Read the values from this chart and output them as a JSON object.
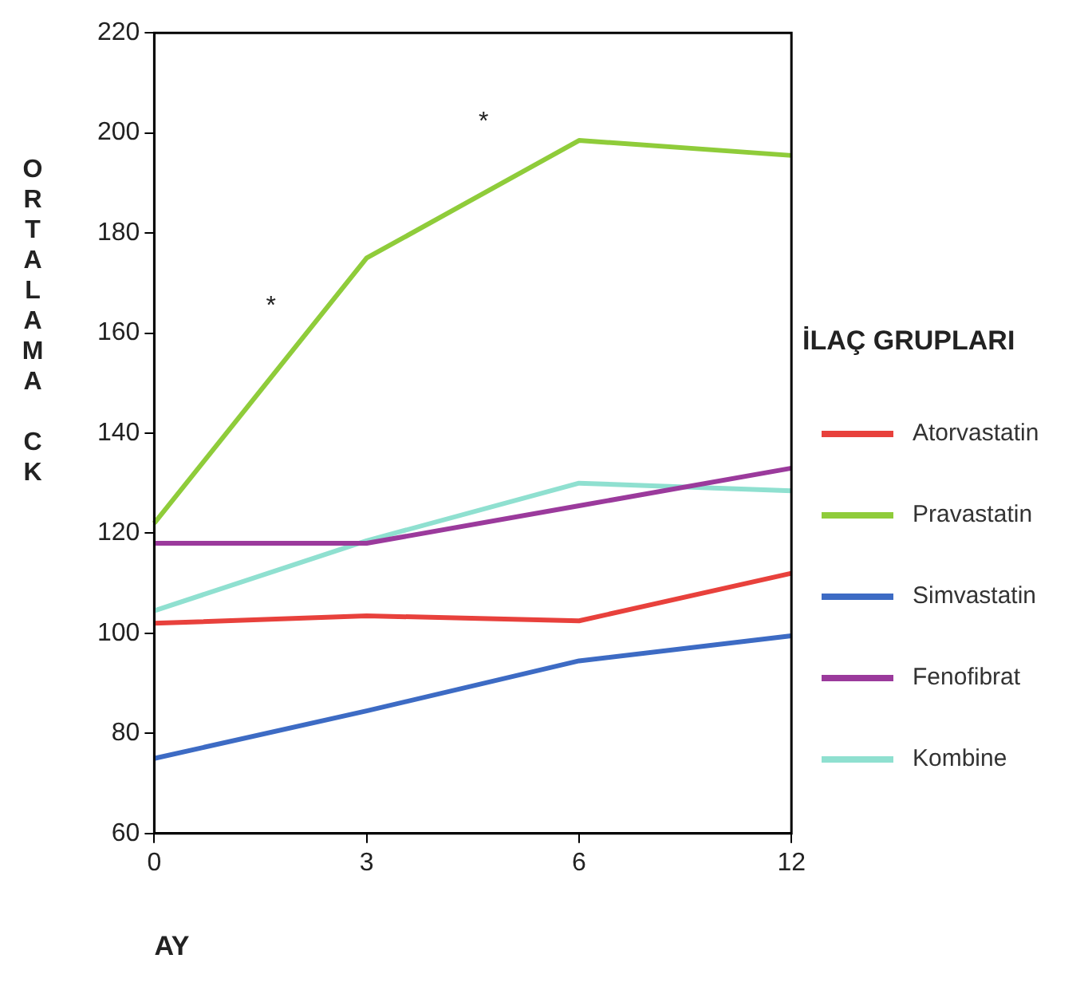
{
  "chart_data": {
    "type": "line",
    "xlabel": "AY",
    "ylabel": "ORTALAMA CK",
    "legend_title": "İLAÇ GRUPLARI",
    "categories": [
      "0",
      "3",
      "6",
      "12"
    ],
    "series": [
      {
        "name": "Atorvastatin",
        "color": "#e8413c",
        "values": [
          102,
          103.5,
          102.5,
          112
        ]
      },
      {
        "name": "Pravastatin",
        "color": "#8fcc3a",
        "values": [
          122,
          175,
          198.5,
          195.5
        ]
      },
      {
        "name": "Simvastatin",
        "color": "#3d6bc4",
        "values": [
          75,
          84.5,
          94.5,
          99.5
        ]
      },
      {
        "name": "Fenofibrat",
        "color": "#9b3a9c",
        "values": [
          118,
          118,
          125.5,
          133
        ]
      },
      {
        "name": "Kombine",
        "color": "#8fe0d0",
        "values": [
          104.5,
          118.5,
          130,
          128.5
        ]
      }
    ],
    "ylim": [
      60,
      220
    ],
    "yticks": [
      60,
      80,
      100,
      120,
      140,
      160,
      180,
      200,
      220
    ],
    "grid": false,
    "legend": "right",
    "marker": "none",
    "line_style": "solid",
    "annotations": [
      "*",
      "*"
    ]
  }
}
